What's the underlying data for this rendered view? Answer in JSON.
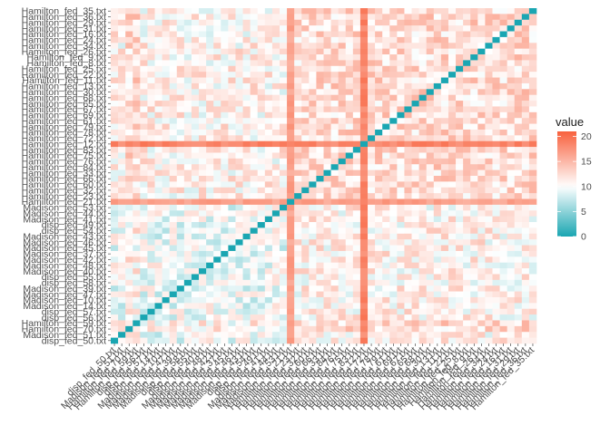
{
  "chart_data": {
    "type": "heatmap",
    "y_labels": [
      "Hamilton_fed_35.txt",
      "Hamilton_fed_36.txt",
      "Hamilton_fed_29.txt",
      "Hamilton_fed_31.txt",
      "Hamilton_fed_16.txt",
      "Hamilton_fed_24.txt",
      "Hamilton_fed_34.txt",
      "Hamilton_fed_26.txt",
      "Hamilton_fed_9.txt",
      "Hamilton_fed_8.txt",
      "Hamilton_fed_25.txt",
      "Hamilton_fed_22.txt",
      "Hamilton_fed_11.txt",
      "Hamilton_fed_13.txt",
      "Hamilton_fed_30.txt",
      "Hamilton_fed_68.txt",
      "Hamilton_fed_65.txt",
      "Hamilton_fed_67.txt",
      "Hamilton_fed_69.txt",
      "Hamilton_fed_61.txt",
      "Hamilton_fed_79.txt",
      "Hamilton_fed_78.txt",
      "Hamilton_fed_72.txt",
      "Hamilton_fed_12.txt",
      "Hamilton_fed_83.txt",
      "Hamilton_fed_75.txt",
      "Hamilton_fed_76.txt",
      "Hamilton_fed_84.txt",
      "Hamilton_fed_33.txt",
      "Hamilton_fed_66.txt",
      "Hamilton_fed_60.txt",
      "Hamilton_fed_32.txt",
      "Hamilton_fed_23.txt",
      "Hamilton_fed_21.txt",
      "Madison_fed_53.txt",
      "Madison_fed_44.txt",
      "Madison_fed_41.txt",
      "disp_fed_49.txt",
      "disp_fed_54.txt",
      "Madison_fed_43.txt",
      "Madison_fed_46.txt",
      "Madison_fed_45.txt",
      "Madison_fed_37.txt",
      "Madison_fed_42.txt",
      "Madison_fed_48.txt",
      "Madison_fed_40.txt",
      "disp_fed_55.txt",
      "disp_fed_58.txt",
      "Madison_fed_39.txt",
      "Madison_fed_47.txt",
      "Madison_fed_10.txt",
      "Madison_fed_14.txt",
      "disp_fed_57.txt",
      "disp_fed_56.txt",
      "Hamilton_fed_59.txt",
      "Hamilton_fed_70.txt",
      "Madison_fed_51.txt",
      "disp_fed_50.txt"
    ],
    "x_labels": [
      "disp_fed_50.txt",
      "Madison_fed_51.txt",
      "Hamilton_fed_70.txt",
      "Hamilton_fed_59.txt",
      "disp_fed_56.txt",
      "disp_fed_57.txt",
      "Madison_fed_14.txt",
      "Madison_fed_10.txt",
      "Madison_fed_47.txt",
      "Madison_fed_39.txt",
      "disp_fed_58.txt",
      "disp_fed_55.txt",
      "Madison_fed_40.txt",
      "Madison_fed_48.txt",
      "Madison_fed_42.txt",
      "Madison_fed_37.txt",
      "Madison_fed_45.txt",
      "Madison_fed_46.txt",
      "Madison_fed_43.txt",
      "disp_fed_54.txt",
      "disp_fed_49.txt",
      "Madison_fed_41.txt",
      "Madison_fed_44.txt",
      "Madison_fed_53.txt",
      "Hamilton_fed_21.txt",
      "Hamilton_fed_23.txt",
      "Hamilton_fed_32.txt",
      "Hamilton_fed_60.txt",
      "Hamilton_fed_66.txt",
      "Hamilton_fed_33.txt",
      "Hamilton_fed_84.txt",
      "Hamilton_fed_76.txt",
      "Hamilton_fed_75.txt",
      "Hamilton_fed_83.txt",
      "Hamilton_fed_12.txt",
      "Hamilton_fed_72.txt",
      "Hamilton_fed_78.txt",
      "Hamilton_fed_79.txt",
      "Hamilton_fed_61.txt",
      "Hamilton_fed_69.txt",
      "Hamilton_fed_67.txt",
      "Hamilton_fed_65.txt",
      "Hamilton_fed_68.txt",
      "Hamilton_fed_30.txt",
      "Hamilton_fed_13.txt",
      "Hamilton_fed_11.txt",
      "Hamilton_fed_22.txt",
      "Hamilton_fed_25.txt",
      "Hamilton_fed_8.txt",
      "Hamilton_fed_9.txt",
      "Hamilton_fed_26.txt",
      "Hamilton_fed_34.txt",
      "Hamilton_fed_24.txt",
      "Hamilton_fed_16.txt",
      "Hamilton_fed_31.txt",
      "Hamilton_fed_29.txt",
      "Hamilton_fed_36.txt",
      "Hamilton_fed_35.txt"
    ],
    "matrix_size": 58,
    "diagonal_value": 0,
    "typical_value_range": [
      7,
      15
    ],
    "highlight_rows_cols": [
      {
        "label": "Hamilton_fed_12.txt",
        "typical_value": 18.5
      },
      {
        "label": "Hamilton_fed_21.txt",
        "typical_value": 16.5
      }
    ],
    "block_note_values": {
      "madison_madison_block": 9.5,
      "hamilton_hamilton_block": 12.5
    },
    "legend": {
      "title": "value",
      "ticks": [
        0,
        5,
        10,
        15,
        20
      ],
      "range": [
        0,
        21
      ],
      "position": "right"
    },
    "colors": {
      "low": "#1aa6b2",
      "mid": "#ffffff",
      "high": "#f8613d",
      "midpoint": 10
    },
    "grid": false
  }
}
